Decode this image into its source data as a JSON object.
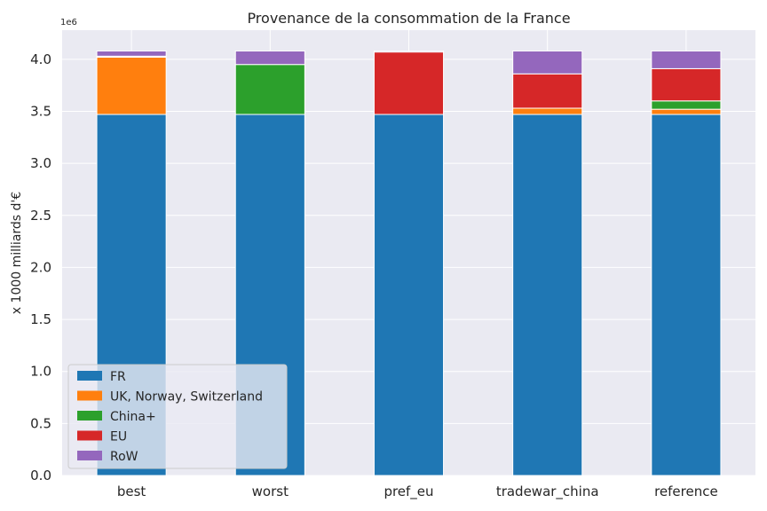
{
  "chart_data": {
    "type": "bar",
    "stacked": true,
    "title": "Provenance de la consommation de la France",
    "xlabel": "",
    "ylabel": "x 1000 milliards d'€",
    "y_offset_label": "1e6",
    "ylim": [
      0,
      4.28
    ],
    "yticks": [
      "0.0",
      "0.5",
      "1.0",
      "1.5",
      "2.0",
      "2.5",
      "3.0",
      "3.5",
      "4.0"
    ],
    "grid": true,
    "legend_position": "lower-left",
    "categories": [
      "best",
      "worst",
      "pref_eu",
      "tradewar_china",
      "reference"
    ],
    "series": [
      {
        "name": "FR",
        "color": "#1f77b4",
        "values": [
          3.47,
          3.47,
          3.47,
          3.47,
          3.47
        ]
      },
      {
        "name": "UK, Norway, Switzerland",
        "color": "#ff7f0e",
        "values": [
          0.55,
          0.0,
          0.0,
          0.06,
          0.05
        ]
      },
      {
        "name": "China+",
        "color": "#2ca02c",
        "values": [
          0.0,
          0.48,
          0.0,
          0.0,
          0.08
        ]
      },
      {
        "name": "EU",
        "color": "#d62728",
        "values": [
          0.01,
          0.0,
          0.6,
          0.33,
          0.31
        ]
      },
      {
        "name": "RoW",
        "color": "#9467bd",
        "values": [
          0.05,
          0.13,
          0.01,
          0.22,
          0.17
        ]
      }
    ]
  }
}
